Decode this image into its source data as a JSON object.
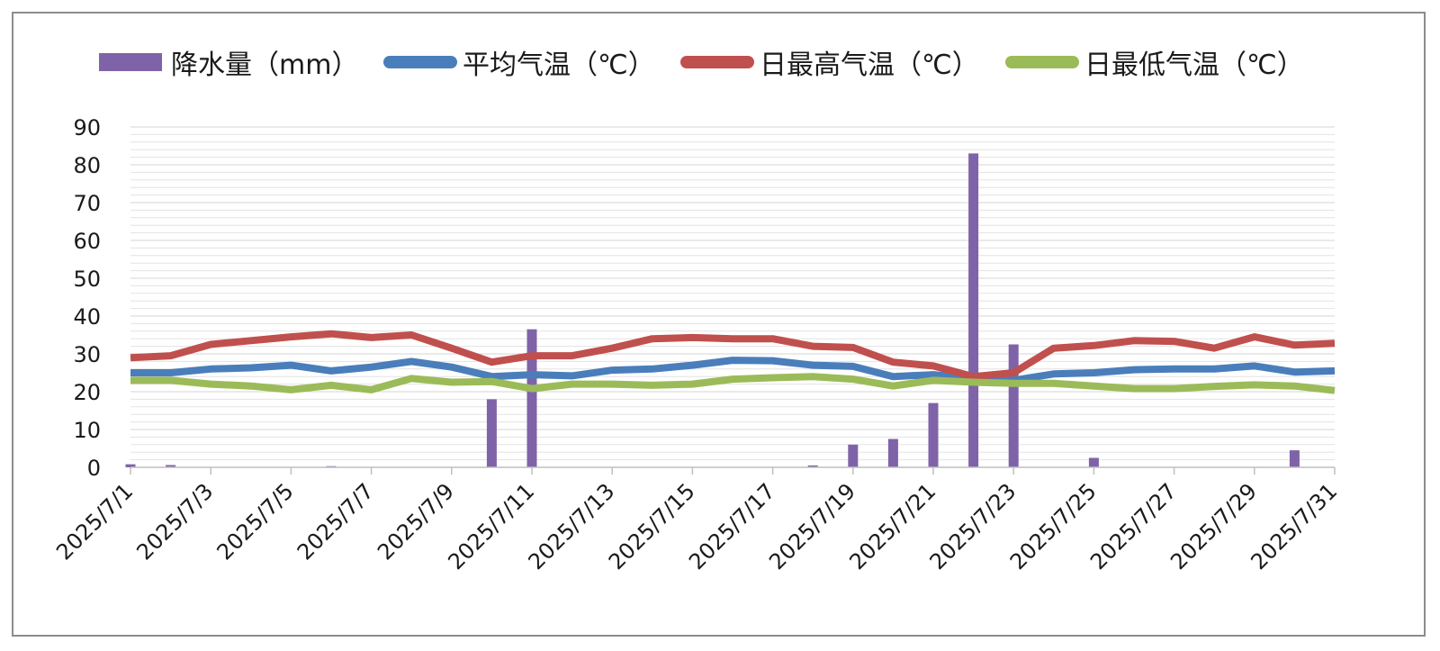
{
  "chart_data": {
    "type": "bar+line",
    "title": "",
    "xlabel": "",
    "ylabel": "",
    "ylim": [
      0,
      90
    ],
    "yticks": [
      0,
      10,
      20,
      30,
      40,
      50,
      60,
      70,
      80,
      90
    ],
    "grid": true,
    "legend_position": "top",
    "categories": [
      "2025/7/1",
      "2025/7/2",
      "2025/7/3",
      "2025/7/4",
      "2025/7/5",
      "2025/7/6",
      "2025/7/7",
      "2025/7/8",
      "2025/7/9",
      "2025/7/10",
      "2025/7/11",
      "2025/7/12",
      "2025/7/13",
      "2025/7/14",
      "2025/7/15",
      "2025/7/16",
      "2025/7/17",
      "2025/7/18",
      "2025/7/19",
      "2025/7/20",
      "2025/7/21",
      "2025/7/22",
      "2025/7/23",
      "2025/7/24",
      "2025/7/25",
      "2025/7/26",
      "2025/7/27",
      "2025/7/28",
      "2025/7/29",
      "2025/7/30",
      "2025/7/31"
    ],
    "xtick_labels": [
      "2025/7/1",
      "2025/7/3",
      "2025/7/5",
      "2025/7/7",
      "2025/7/9",
      "2025/7/11",
      "2025/7/13",
      "2025/7/15",
      "2025/7/17",
      "2025/7/19",
      "2025/7/21",
      "2025/7/23",
      "2025/7/25",
      "2025/7/27",
      "2025/7/29",
      "2025/7/31"
    ],
    "series": [
      {
        "name": "降水量（mm）",
        "kind": "bar",
        "color": "#7f63a8",
        "values": [
          0.8,
          0.6,
          0,
          0,
          0,
          0.3,
          0,
          0,
          0,
          18,
          36.5,
          0,
          0,
          0,
          0,
          0,
          0,
          0.5,
          6,
          7.5,
          17,
          83,
          32.5,
          0,
          2.5,
          0,
          0,
          0,
          0,
          4.5,
          0
        ]
      },
      {
        "name": "平均气温（℃）",
        "kind": "line",
        "color": "#4a7ebb",
        "values": [
          25,
          25,
          26,
          26.3,
          27,
          25.5,
          26.5,
          28,
          26.5,
          24,
          24.5,
          24.2,
          25.7,
          26,
          27,
          28.3,
          28.2,
          27,
          26.7,
          24,
          24.5,
          23.5,
          23,
          24.7,
          25,
          25.8,
          26,
          26,
          26.8,
          25.2,
          25.5
        ]
      },
      {
        "name": "日最高气温（℃）",
        "kind": "line",
        "color": "#c0504d",
        "values": [
          29,
          29.5,
          32.5,
          33.5,
          34.5,
          35.3,
          34.3,
          35,
          31.5,
          27.8,
          29.5,
          29.5,
          31.5,
          34,
          34.3,
          34,
          34,
          32,
          31.7,
          27.8,
          26.8,
          24,
          25,
          31.5,
          32.2,
          33.5,
          33.3,
          31.5,
          34.5,
          32.3,
          32.8
        ]
      },
      {
        "name": "日最低气温（℃）",
        "kind": "line",
        "color": "#9bbb59",
        "values": [
          23,
          23,
          22,
          21.5,
          20.5,
          21.7,
          20.5,
          23.5,
          22.5,
          22.7,
          20.8,
          22,
          22,
          21.7,
          22,
          23.3,
          23.7,
          24,
          23.3,
          21.5,
          23,
          22.5,
          22.2,
          22.2,
          21.5,
          20.8,
          20.8,
          21.4,
          21.8,
          21.5,
          20.3
        ]
      }
    ]
  }
}
